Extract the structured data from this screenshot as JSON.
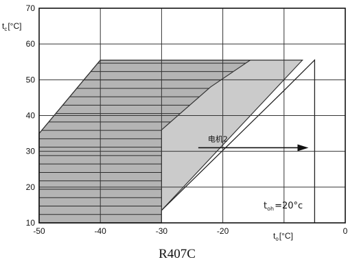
{
  "chart_data": {
    "type": "area",
    "title": "R407C",
    "xlabel_main": "t",
    "xlabel_sub": "o",
    "xlabel_unit": "[°C]",
    "ylabel_main": "t",
    "ylabel_sub": "c",
    "ylabel_unit": "[°C]",
    "xlim": [
      -50,
      0
    ],
    "ylim": [
      10,
      70
    ],
    "x_ticks": [
      -50,
      -40,
      -30,
      -20,
      -10,
      0
    ],
    "y_ticks": [
      10,
      20,
      30,
      40,
      50,
      60,
      70
    ],
    "x_tick_labels": [
      "-50",
      "-40",
      "-30",
      "-20",
      "",
      "0"
    ],
    "y_tick_labels": [
      "10",
      "20",
      "30",
      "40",
      "50",
      "60",
      "70"
    ],
    "grid": true,
    "series": [
      {
        "region": "outer-envelope",
        "fill": "#cbcbcb",
        "points": [
          [
            -50,
            35
          ],
          [
            -40,
            55.5
          ],
          [
            -7,
            55.5
          ],
          [
            -30,
            13.5
          ],
          [
            -30,
            10
          ],
          [
            -50,
            10
          ]
        ]
      },
      {
        "region": "hatched-envelope",
        "fill": "#b4b4b4",
        "hatch_step": 2.35,
        "points": [
          [
            -50,
            35
          ],
          [
            -40,
            55.5
          ],
          [
            -15.5,
            55.5
          ],
          [
            -22,
            48
          ],
          [
            -30,
            36
          ],
          [
            -30,
            10
          ],
          [
            -50,
            10
          ]
        ]
      }
    ],
    "boundary_line": {
      "points": [
        [
          -30,
          13.5
        ],
        [
          -10,
          47
        ],
        [
          -5,
          55.5
        ],
        [
          -5,
          10
        ]
      ]
    },
    "annotations": {
      "arrow_label": "电机2",
      "arrow_from": [
        -24,
        31
      ],
      "arrow_to": [
        -6,
        31
      ],
      "toh_main": "t",
      "toh_sub": "oh",
      "toh_value": "=20°c"
    }
  }
}
